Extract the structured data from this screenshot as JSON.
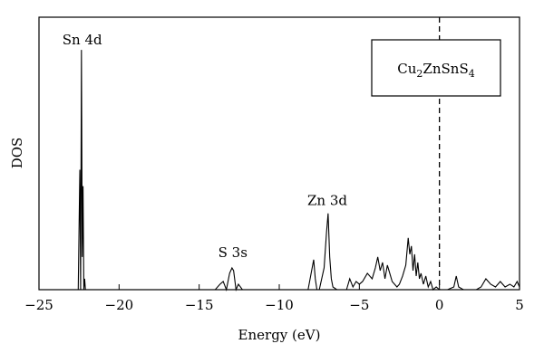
{
  "chart_data": {
    "type": "line",
    "title": "",
    "xlabel": "Energy (eV)",
    "ylabel": "DOS",
    "xlim": [
      -25,
      5
    ],
    "ylim": [
      0,
      1.0
    ],
    "xticks": [
      -25,
      -20,
      -15,
      -10,
      -5,
      0,
      5
    ],
    "xtick_labels": [
      "−25",
      "−20",
      "−15",
      "−10",
      "−5",
      "0",
      "5"
    ],
    "fermi_level": 0,
    "fermi_line_style": "dashed",
    "legend": {
      "text_main": "Cu",
      "sub1": "2",
      "text_mid": "ZnSnS",
      "sub2": "4",
      "placement": "top-right"
    },
    "annotations": [
      {
        "text": "Sn 4d",
        "x": -22.3,
        "y": 0.9
      },
      {
        "text": "S 3s",
        "x": -12.9,
        "y": 0.12
      },
      {
        "text": "Zn 3d",
        "x": -7.0,
        "y": 0.31
      }
    ],
    "grid": false,
    "series": [
      {
        "x": [
          -25,
          -22.55,
          -22.45,
          -22.4,
          -22.35,
          -22.3,
          -22.25,
          -22.2,
          -22.15,
          -22.1,
          -21.5,
          -14.0,
          -13.7,
          -13.5,
          -13.3,
          -13.1,
          -12.95,
          -12.85,
          -12.7,
          -12.55,
          -12.3,
          -8.2,
          -7.85,
          -7.75,
          -7.65,
          -7.5,
          -7.2,
          -7.05,
          -6.95,
          -6.85,
          -6.75,
          -6.65,
          -6.4,
          -5.8,
          -5.6,
          -5.4,
          -5.2,
          -5.0,
          -4.8,
          -4.5,
          -4.2,
          -4.0,
          -3.85,
          -3.7,
          -3.55,
          -3.4,
          -3.25,
          -3.1,
          -2.95,
          -2.8,
          -2.65,
          -2.5,
          -2.3,
          -2.1,
          -1.95,
          -1.85,
          -1.75,
          -1.65,
          -1.55,
          -1.45,
          -1.35,
          -1.25,
          -1.15,
          -1.0,
          -0.85,
          -0.7,
          -0.55,
          -0.4,
          -0.2,
          0.0,
          0.5,
          0.9,
          1.05,
          1.2,
          1.5,
          2.3,
          2.6,
          2.9,
          3.2,
          3.5,
          3.8,
          4.1,
          4.4,
          4.65,
          4.85,
          5.0
        ],
        "y": [
          0,
          0,
          0.44,
          0.0,
          0.88,
          0.12,
          0.38,
          0.0,
          0.04,
          0,
          0,
          0,
          0.02,
          0.03,
          0.0,
          0.06,
          0.08,
          0.07,
          0.0,
          0.02,
          0,
          0,
          0.11,
          0.04,
          0.0,
          0.0,
          0.08,
          0.21,
          0.28,
          0.12,
          0.04,
          0.01,
          0.0,
          0.0,
          0.04,
          0.01,
          0.03,
          0.02,
          0.03,
          0.06,
          0.04,
          0.08,
          0.12,
          0.07,
          0.1,
          0.04,
          0.09,
          0.06,
          0.03,
          0.02,
          0.01,
          0.02,
          0.05,
          0.09,
          0.19,
          0.13,
          0.16,
          0.07,
          0.13,
          0.05,
          0.1,
          0.04,
          0.06,
          0.02,
          0.05,
          0.01,
          0.03,
          0.0,
          0.01,
          0.0,
          0.0,
          0.01,
          0.05,
          0.01,
          0.0,
          0.0,
          0.01,
          0.04,
          0.02,
          0.01,
          0.03,
          0.01,
          0.02,
          0.01,
          0.03,
          0.01
        ]
      }
    ]
  }
}
